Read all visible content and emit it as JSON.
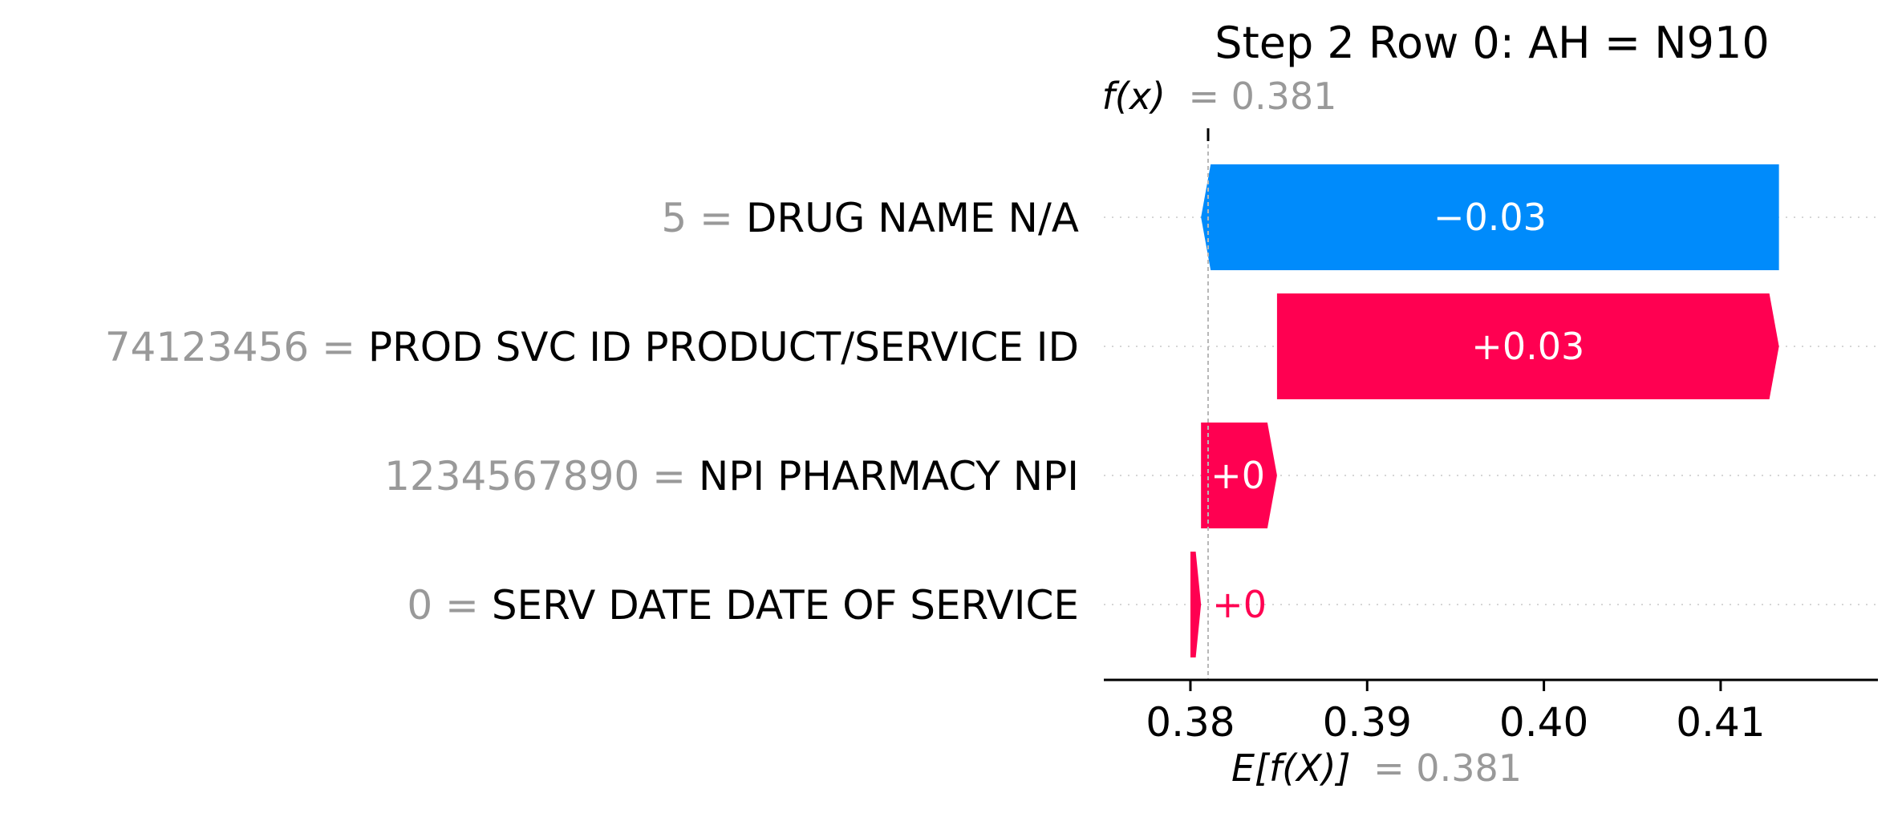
{
  "chart_data": {
    "type": "waterfall",
    "title": "Step 2 Row 0: AH = N910",
    "fx_label": "f(x)",
    "fx_value": 0.381,
    "fx_value_label": "= 0.381",
    "ex_label": "E[f(X)]",
    "ex_value": 0.381,
    "ex_value_label": "= 0.381",
    "xlim": [
      0.3751,
      0.4189
    ],
    "ticks": [
      0.38,
      0.39,
      0.4,
      0.41
    ],
    "tick_labels": [
      "0.38",
      "0.39",
      "0.40",
      "0.41"
    ],
    "features": [
      {
        "value_text": "5 =",
        "name": "DRUG NAME N/A",
        "start": 0.4133,
        "end": 0.3806,
        "label": "−0.03",
        "sign": "negative"
      },
      {
        "value_text": "74123456 =",
        "name": "PROD SVC ID PRODUCT/SERVICE ID",
        "start": 0.3849,
        "end": 0.4133,
        "label": "+0.03",
        "sign": "positive"
      },
      {
        "value_text": "1234567890 =",
        "name": "NPI PHARMACY NPI",
        "start": 0.3806,
        "end": 0.3849,
        "label": "+0",
        "sign": "positive"
      },
      {
        "value_text": "0 =",
        "name": "SERV DATE DATE OF SERVICE",
        "start": 0.38,
        "end": 0.3806,
        "label": "+0",
        "sign": "positive"
      }
    ],
    "colors": {
      "positive": "#ff0051",
      "negative": "#008bfb",
      "value_text": "#999999"
    }
  }
}
